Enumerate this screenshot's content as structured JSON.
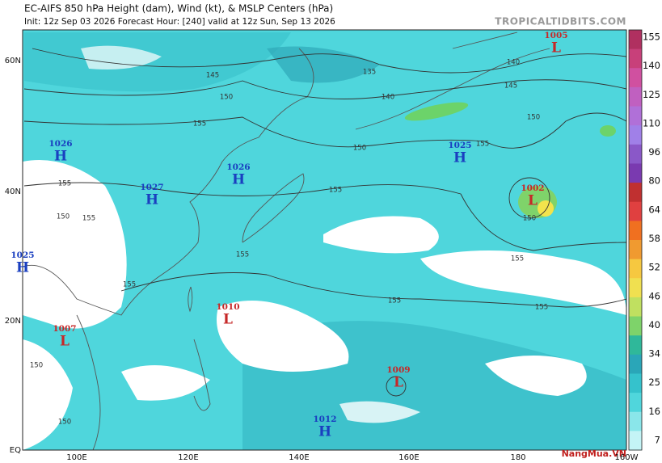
{
  "title": "EC-AIFS 850 hPa Height (dam), Wind (kt), & MSLP Centers (hPa)",
  "subtitle": "Init: 12z Sep 03 2026   Forecast Hour: [240]   valid at 12z Sun, Sep 13 2026",
  "source": "TROPICALTIDBITS.COM",
  "lat_labels": [
    "60N",
    "40N",
    "20N",
    "EQ"
  ],
  "lon_labels": [
    "100E",
    "120E",
    "140E",
    "160E",
    "180",
    "160W"
  ],
  "colorbar": {
    "ticks": [
      "155",
      "140",
      "125",
      "110",
      "96",
      "80",
      "64",
      "58",
      "52",
      "46",
      "40",
      "34",
      "25",
      "16",
      "7"
    ]
  },
  "pressure_centers": [
    {
      "letter": "H",
      "value": "1026"
    },
    {
      "letter": "H",
      "value": "1027"
    },
    {
      "letter": "H",
      "value": "1026"
    },
    {
      "letter": "H",
      "value": "1025"
    },
    {
      "letter": "L",
      "value": "1007"
    },
    {
      "letter": "L",
      "value": "1010"
    },
    {
      "letter": "L",
      "value": "1009"
    },
    {
      "letter": "H",
      "value": "1012"
    },
    {
      "letter": "H",
      "value": "1025"
    },
    {
      "letter": "L",
      "value": "1002"
    },
    {
      "letter": "L",
      "value": "1005"
    }
  ],
  "contour_labels": [
    "145",
    "150",
    "155",
    "155",
    "150",
    "155",
    "155",
    "150",
    "150",
    "155",
    "155",
    "150",
    "140",
    "135",
    "145",
    "140",
    "150",
    "155",
    "150",
    "155",
    "155",
    "155"
  ],
  "watermark": "NangMua.VN"
}
